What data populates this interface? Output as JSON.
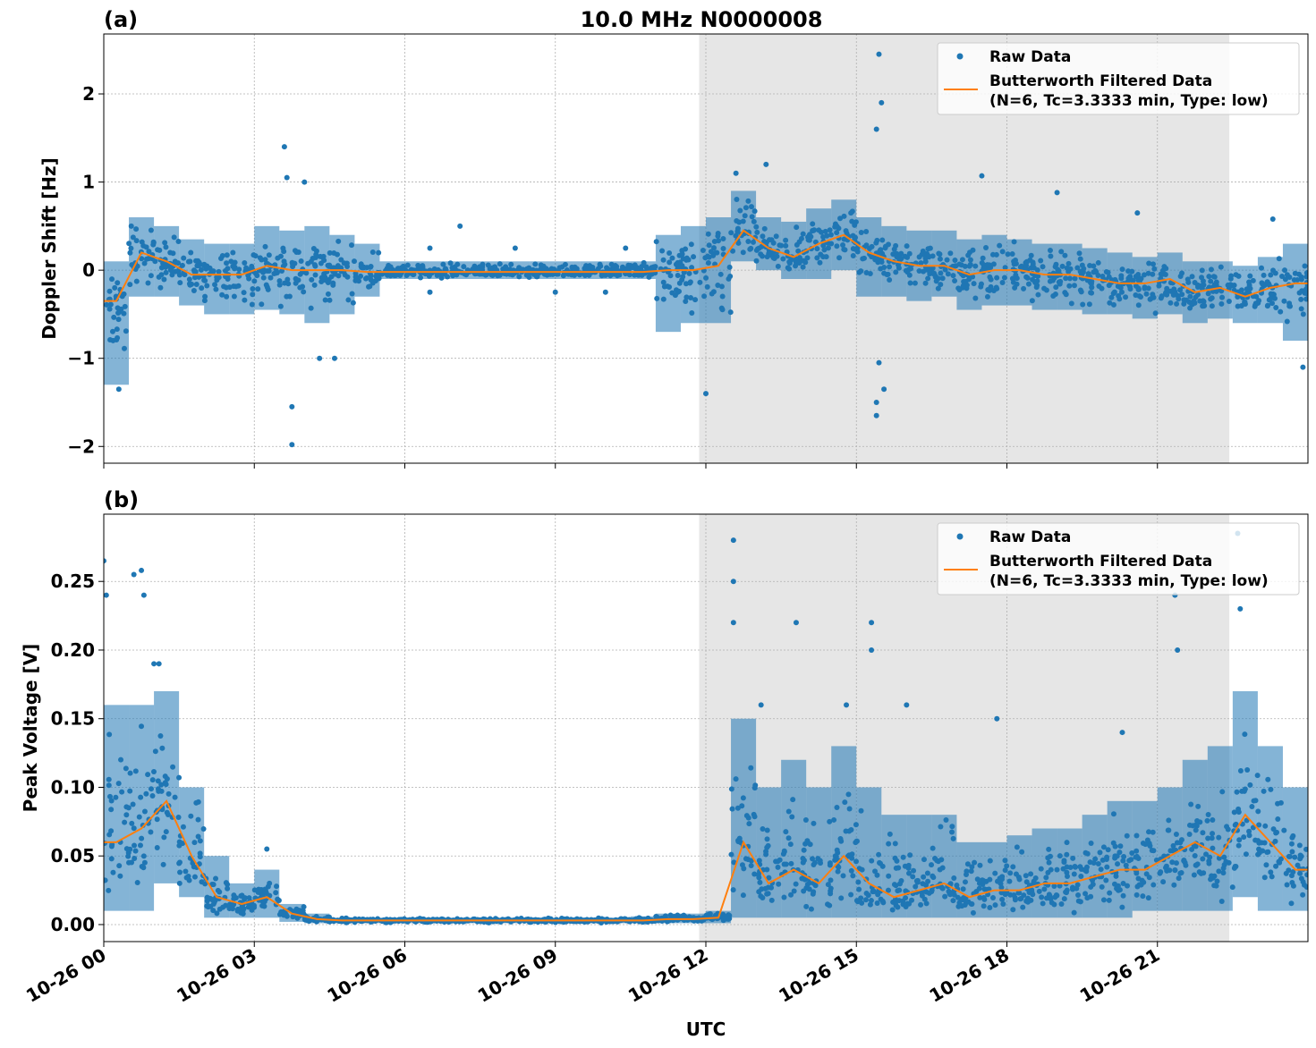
{
  "title": "10.0 MHz N0000008",
  "colors": {
    "raw": "#1f77b4",
    "filtered": "#ff7f0e",
    "shade": "#e6e6e6",
    "grid": "#b0b0b0"
  },
  "chart_data": [
    {
      "type": "scatter",
      "panel_label": "(a)",
      "ylabel": "Doppler Shift [Hz]",
      "xlabel": "",
      "xlim": [
        "10-26 00:00",
        "10-27 00:00"
      ],
      "ylim": [
        -2.19,
        2.68
      ],
      "yticks": [
        2,
        1,
        0,
        -1,
        -2
      ],
      "ytick_labels": [
        "2",
        "1",
        "0",
        "−1",
        "−2"
      ],
      "grid": true,
      "legend": {
        "placement": "top-right",
        "entries": [
          "Raw Data",
          "Butterworth Filtered Data",
          "(N=6, Tc=3.3333 min, Type: low)"
        ]
      },
      "shaded_span": [
        "10-26 11:52",
        "10-26 22:26"
      ],
      "bins_hour_center": [
        0.25,
        0.75,
        1.25,
        1.75,
        2.25,
        2.75,
        3.25,
        3.75,
        4.25,
        4.75,
        5.25,
        5.75,
        6.25,
        6.75,
        7.25,
        7.75,
        8.25,
        8.75,
        9.25,
        9.75,
        10.25,
        10.75,
        11.25,
        11.75,
        12.25,
        12.75,
        13.25,
        13.75,
        14.25,
        14.75,
        15.25,
        15.75,
        16.25,
        16.75,
        17.25,
        17.75,
        18.25,
        18.75,
        19.25,
        19.75,
        20.25,
        20.75,
        21.25,
        21.75,
        22.25,
        22.75,
        23.25,
        23.75
      ],
      "series": [
        {
          "name": "Butterworth Filtered Data",
          "kind": "line",
          "values": [
            -0.35,
            0.2,
            0.1,
            -0.05,
            -0.05,
            -0.05,
            0.05,
            0.0,
            0.0,
            0.0,
            -0.02,
            -0.02,
            -0.02,
            -0.02,
            -0.02,
            -0.02,
            -0.02,
            -0.02,
            -0.02,
            -0.02,
            -0.02,
            -0.02,
            0.0,
            0.0,
            0.05,
            0.45,
            0.25,
            0.15,
            0.3,
            0.4,
            0.2,
            0.1,
            0.05,
            0.05,
            -0.05,
            0.0,
            0.0,
            -0.05,
            -0.05,
            -0.1,
            -0.15,
            -0.15,
            -0.1,
            -0.25,
            -0.2,
            -0.3,
            -0.2,
            -0.15
          ]
        },
        {
          "name": "Raw Data",
          "kind": "scatter-range",
          "low": [
            -1.3,
            -0.3,
            -0.3,
            -0.4,
            -0.5,
            -0.5,
            -0.45,
            -0.5,
            -0.6,
            -0.5,
            -0.3,
            -0.1,
            -0.1,
            -0.1,
            -0.1,
            -0.1,
            -0.1,
            -0.1,
            -0.1,
            -0.1,
            -0.1,
            -0.1,
            -0.7,
            -0.6,
            -0.6,
            0.1,
            0.0,
            -0.1,
            -0.1,
            0.0,
            -0.3,
            -0.3,
            -0.35,
            -0.3,
            -0.45,
            -0.4,
            -0.4,
            -0.45,
            -0.45,
            -0.5,
            -0.5,
            -0.55,
            -0.5,
            -0.6,
            -0.55,
            -0.6,
            -0.6,
            -0.8
          ],
          "high": [
            0.1,
            0.6,
            0.5,
            0.35,
            0.3,
            0.3,
            0.5,
            0.45,
            0.5,
            0.4,
            0.3,
            0.1,
            0.1,
            0.1,
            0.1,
            0.1,
            0.1,
            0.1,
            0.1,
            0.1,
            0.1,
            0.1,
            0.4,
            0.5,
            0.6,
            0.9,
            0.6,
            0.55,
            0.7,
            0.8,
            0.6,
            0.5,
            0.45,
            0.45,
            0.35,
            0.4,
            0.35,
            0.3,
            0.3,
            0.25,
            0.2,
            0.15,
            0.2,
            0.1,
            0.1,
            0.05,
            0.15,
            0.3
          ],
          "outliers": [
            [
              3.6,
              1.4
            ],
            [
              3.65,
              1.05
            ],
            [
              4.0,
              1.0
            ],
            [
              3.75,
              -1.55
            ],
            [
              3.75,
              -1.98
            ],
            [
              4.3,
              -1.0
            ],
            [
              4.6,
              -1.0
            ],
            [
              15.45,
              2.45
            ],
            [
              15.5,
              1.9
            ],
            [
              15.4,
              1.6
            ],
            [
              15.4,
              -1.5
            ],
            [
              15.4,
              -1.65
            ],
            [
              15.55,
              -1.35
            ],
            [
              15.45,
              -1.05
            ],
            [
              12.0,
              -1.4
            ],
            [
              13.2,
              1.2
            ],
            [
              12.6,
              1.1
            ],
            [
              19.0,
              0.88
            ],
            [
              17.5,
              1.07
            ],
            [
              20.6,
              0.65
            ],
            [
              23.3,
              0.58
            ],
            [
              0.3,
              -1.35
            ],
            [
              23.9,
              -1.1
            ],
            [
              7.1,
              0.5
            ],
            [
              8.2,
              0.25
            ],
            [
              9.0,
              -0.25
            ],
            [
              6.5,
              0.25
            ],
            [
              6.5,
              -0.25
            ],
            [
              10.0,
              -0.25
            ],
            [
              10.4,
              0.25
            ]
          ]
        }
      ]
    },
    {
      "type": "scatter",
      "panel_label": "(b)",
      "ylabel": "Peak Voltage [V]",
      "xlabel": "UTC",
      "xlim": [
        "10-26 00:00",
        "10-27 00:00"
      ],
      "ylim": [
        -0.0124,
        0.299
      ],
      "yticks": [
        0.25,
        0.2,
        0.15,
        0.1,
        0.05,
        0.0
      ],
      "ytick_labels": [
        "0.25",
        "0.20",
        "0.15",
        "0.10",
        "0.05",
        "0.00"
      ],
      "xtick_labels": [
        "10-26 00",
        "10-26 03",
        "10-26 06",
        "10-26 09",
        "10-26 12",
        "10-26 15",
        "10-26 18",
        "10-26 21"
      ],
      "grid": true,
      "legend": {
        "placement": "top-right",
        "entries": [
          "Raw Data",
          "Butterworth Filtered Data",
          "(N=6, Tc=3.3333 min, Type: low)"
        ]
      },
      "shaded_span": [
        "10-26 11:52",
        "10-26 22:26"
      ],
      "bins_hour_center": [
        0.25,
        0.75,
        1.25,
        1.75,
        2.25,
        2.75,
        3.25,
        3.75,
        4.25,
        4.75,
        5.25,
        5.75,
        6.25,
        6.75,
        7.25,
        7.75,
        8.25,
        8.75,
        9.25,
        9.75,
        10.25,
        10.75,
        11.25,
        11.75,
        12.25,
        12.75,
        13.25,
        13.75,
        14.25,
        14.75,
        15.25,
        15.75,
        16.25,
        16.75,
        17.25,
        17.75,
        18.25,
        18.75,
        19.25,
        19.75,
        20.25,
        20.75,
        21.25,
        21.75,
        22.25,
        22.75,
        23.25,
        23.75
      ],
      "series": [
        {
          "name": "Butterworth Filtered Data",
          "kind": "line",
          "values": [
            0.06,
            0.07,
            0.09,
            0.05,
            0.02,
            0.015,
            0.02,
            0.008,
            0.004,
            0.003,
            0.003,
            0.003,
            0.003,
            0.003,
            0.003,
            0.003,
            0.003,
            0.003,
            0.003,
            0.003,
            0.003,
            0.003,
            0.004,
            0.004,
            0.005,
            0.06,
            0.03,
            0.04,
            0.03,
            0.05,
            0.03,
            0.02,
            0.025,
            0.03,
            0.02,
            0.025,
            0.025,
            0.03,
            0.03,
            0.035,
            0.04,
            0.04,
            0.05,
            0.06,
            0.05,
            0.08,
            0.06,
            0.04
          ]
        },
        {
          "name": "Raw Data",
          "kind": "scatter-range",
          "low": [
            0.01,
            0.01,
            0.03,
            0.02,
            0.005,
            0.005,
            0.005,
            0.002,
            0.001,
            0.001,
            0.001,
            0.001,
            0.001,
            0.001,
            0.001,
            0.001,
            0.001,
            0.001,
            0.001,
            0.001,
            0.001,
            0.001,
            0.001,
            0.001,
            0.001,
            0.005,
            0.005,
            0.005,
            0.005,
            0.005,
            0.005,
            0.005,
            0.005,
            0.005,
            0.005,
            0.005,
            0.005,
            0.005,
            0.005,
            0.005,
            0.005,
            0.01,
            0.01,
            0.01,
            0.01,
            0.02,
            0.01,
            0.01
          ],
          "high": [
            0.16,
            0.16,
            0.17,
            0.1,
            0.05,
            0.03,
            0.04,
            0.015,
            0.008,
            0.005,
            0.005,
            0.005,
            0.005,
            0.005,
            0.005,
            0.005,
            0.005,
            0.005,
            0.005,
            0.005,
            0.005,
            0.006,
            0.008,
            0.008,
            0.01,
            0.15,
            0.1,
            0.12,
            0.1,
            0.13,
            0.1,
            0.08,
            0.08,
            0.08,
            0.06,
            0.06,
            0.065,
            0.07,
            0.07,
            0.08,
            0.09,
            0.09,
            0.1,
            0.12,
            0.13,
            0.17,
            0.13,
            0.1
          ],
          "outliers": [
            [
              0.0,
              0.265
            ],
            [
              0.05,
              0.24
            ],
            [
              0.6,
              0.255
            ],
            [
              0.75,
              0.258
            ],
            [
              0.8,
              0.24
            ],
            [
              1.1,
              0.19
            ],
            [
              12.55,
              0.28
            ],
            [
              12.55,
              0.25
            ],
            [
              12.55,
              0.22
            ],
            [
              13.8,
              0.22
            ],
            [
              15.3,
              0.22
            ],
            [
              15.3,
              0.2
            ],
            [
              16.0,
              0.16
            ],
            [
              21.35,
              0.24
            ],
            [
              21.4,
              0.2
            ],
            [
              22.6,
              0.285
            ],
            [
              22.65,
              0.23
            ],
            [
              14.8,
              0.16
            ],
            [
              17.8,
              0.15
            ],
            [
              13.1,
              0.16
            ],
            [
              20.3,
              0.14
            ],
            [
              3.25,
              0.055
            ],
            [
              1.0,
              0.19
            ]
          ]
        }
      ]
    }
  ]
}
